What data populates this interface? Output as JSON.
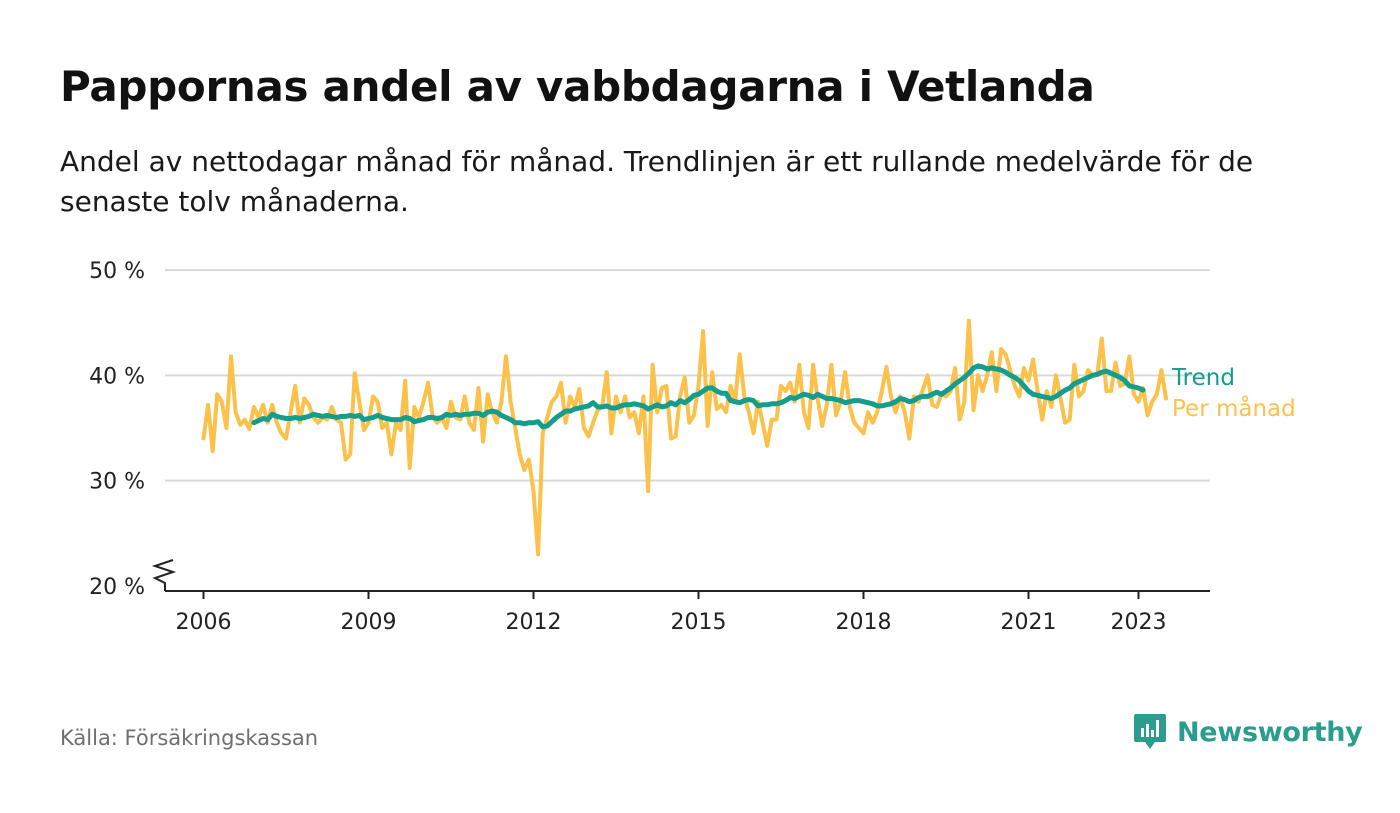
{
  "title": "Pappornas andel av vabbdagarna i Vetlanda",
  "subtitle": "Andel av nettodagar månad för månad. Trendlinjen är ett rullande medelvärde för de senaste tolv månaderna.",
  "source": "Källa: Försäkringskassan",
  "logo": {
    "text": "Newsworthy",
    "icon": "bar-chart-badge-icon",
    "color": "#2a9d8f"
  },
  "chart_data": {
    "type": "line",
    "title": "Pappornas andel av vabbdagarna i Vetlanda",
    "ylim": [
      20,
      50
    ],
    "xlim": [
      2005.3,
      2024.3
    ],
    "y_ticks": [
      20,
      30,
      40,
      50
    ],
    "y_tick_labels": [
      "20 %",
      "30 %",
      "40 %",
      "50 %"
    ],
    "x_ticks": [
      2006,
      2009,
      2012,
      2015,
      2018,
      2021,
      2023
    ],
    "x_tick_labels": [
      "2006",
      "2009",
      "2012",
      "2015",
      "2018",
      "2021",
      "2023"
    ],
    "y_axis_break": true,
    "grid": true,
    "legend": "right-end labels",
    "series": [
      {
        "name": "Per månad",
        "color": "#fbc14b",
        "start": 2006.0,
        "step": 0.08333,
        "values": [
          34,
          37.2,
          32.8,
          38.2,
          37.5,
          35,
          41.8,
          36.5,
          35.3,
          35.8,
          34.9,
          37,
          36,
          37.2,
          35.5,
          37.2,
          35.5,
          34.5,
          34,
          36.5,
          39,
          35.5,
          37.8,
          37.2,
          36,
          35.5,
          36,
          35.8,
          37,
          35.8,
          35.5,
          32,
          32.5,
          40.2,
          37.5,
          34.8,
          35.5,
          38,
          37.5,
          35,
          35.5,
          32.5,
          35.5,
          34.8,
          39.5,
          31.2,
          37,
          36,
          37.5,
          39.3,
          36,
          35.5,
          36,
          35,
          37.5,
          36,
          35.8,
          38,
          35.5,
          34.8,
          38.8,
          33.7,
          38.2,
          36.5,
          35.5,
          37.5,
          41.8,
          37.5,
          35,
          32.5,
          31,
          32,
          29,
          23,
          34.5,
          36,
          37.5,
          38,
          39.3,
          35.5,
          38,
          37,
          38.7,
          35,
          34.2,
          35.5,
          36.7,
          37,
          40.3,
          34.5,
          38,
          36.5,
          38,
          36,
          36.5,
          34.5,
          38,
          29,
          41,
          36.5,
          38.8,
          39,
          34,
          34.2,
          38,
          39.8,
          35.5,
          36.2,
          39,
          44.2,
          35.2,
          40.3,
          36.8,
          37.2,
          36.5,
          39,
          37.5,
          42,
          38,
          36.5,
          34.5,
          37.5,
          35.5,
          33.3,
          35.8,
          35.8,
          39,
          38.5,
          39.3,
          37.5,
          41,
          36.5,
          35,
          41,
          37.8,
          35.2,
          37.2,
          41,
          36.2,
          37.5,
          40.3,
          37,
          35.5,
          35,
          34.5,
          36.5,
          35.5,
          36.5,
          38.5,
          40.8,
          38,
          36.5,
          38,
          36.5,
          34,
          38,
          37.5,
          38.7,
          40,
          37.2,
          37,
          38.2,
          38,
          38.5,
          40.7,
          35.8,
          37.5,
          45.2,
          36.7,
          40,
          38.5,
          40,
          42.2,
          38.5,
          42.5,
          42,
          40.5,
          39,
          38,
          40.7,
          39.5,
          41.5,
          38.5,
          35.8,
          38.5,
          37,
          40,
          37.8,
          35.5,
          35.8,
          41,
          38,
          38.5,
          40.5,
          40,
          40,
          43.5,
          38.5,
          38.5,
          41.2,
          39,
          39.2,
          41.8,
          38.2,
          37.5,
          38.8,
          36.2,
          37.5,
          38.2,
          40.5,
          37.8
        ]
      },
      {
        "name": "Trend",
        "color": "#149c8c",
        "start": 2006.917,
        "step": 0.08333,
        "values": [
          35.5,
          35.7,
          35.9,
          35.8,
          36.3,
          36.1,
          36,
          35.9,
          35.9,
          36,
          35.9,
          36,
          36.1,
          36.3,
          36.2,
          36.1,
          36.2,
          36.1,
          36,
          36.1,
          36.1,
          36.2,
          36.1,
          36.2,
          35.8,
          35.9,
          36,
          36.2,
          36,
          35.9,
          35.8,
          35.8,
          35.8,
          36,
          35.9,
          35.6,
          35.7,
          35.8,
          36,
          36,
          35.9,
          36,
          36.3,
          36.2,
          36.3,
          36.2,
          36.3,
          36.3,
          36.4,
          36.4,
          36.2,
          36.5,
          36.6,
          36.5,
          36.2,
          36,
          35.8,
          35.5,
          35.5,
          35.4,
          35.5,
          35.5,
          35.6,
          35.1,
          35.2,
          35.6,
          36,
          36.3,
          36.6,
          36.6,
          36.8,
          36.9,
          37,
          37.1,
          37.4,
          37,
          37,
          37.1,
          36.9,
          36.9,
          37.1,
          37.2,
          37.2,
          37.3,
          37.2,
          37.1,
          36.8,
          37,
          37.2,
          37,
          37.1,
          37.4,
          37.2,
          37.6,
          37.4,
          37.7,
          38.1,
          38.2,
          38.5,
          38.8,
          38.8,
          38.5,
          38.3,
          38.3,
          37.6,
          37.5,
          37.4,
          37.6,
          37.7,
          37.6,
          37.1,
          37.2,
          37.2,
          37.3,
          37.3,
          37.4,
          37.6,
          37.9,
          37.8,
          38,
          38.2,
          38.1,
          37.9,
          38.2,
          38,
          37.8,
          37.8,
          37.7,
          37.6,
          37.4,
          37.5,
          37.6,
          37.6,
          37.5,
          37.4,
          37.3,
          37.1,
          37.1,
          37.2,
          37.3,
          37.5,
          37.8,
          37.7,
          37.5,
          37.6,
          37.9,
          38,
          38,
          38.2,
          38.4,
          38.2,
          38.5,
          38.8,
          39.2,
          39.5,
          39.8,
          40.2,
          40.7,
          40.9,
          40.8,
          40.6,
          40.7,
          40.6,
          40.5,
          40.3,
          40,
          39.8,
          39.5,
          39,
          38.5,
          38.2,
          38.1,
          38,
          37.9,
          37.8,
          38,
          38.3,
          38.6,
          38.8,
          39.2,
          39.4,
          39.6,
          39.8,
          40,
          40.1,
          40.3,
          40.4,
          40.2,
          40,
          39.8,
          39.5,
          39,
          38.9,
          38.8,
          38.6
        ]
      }
    ]
  }
}
